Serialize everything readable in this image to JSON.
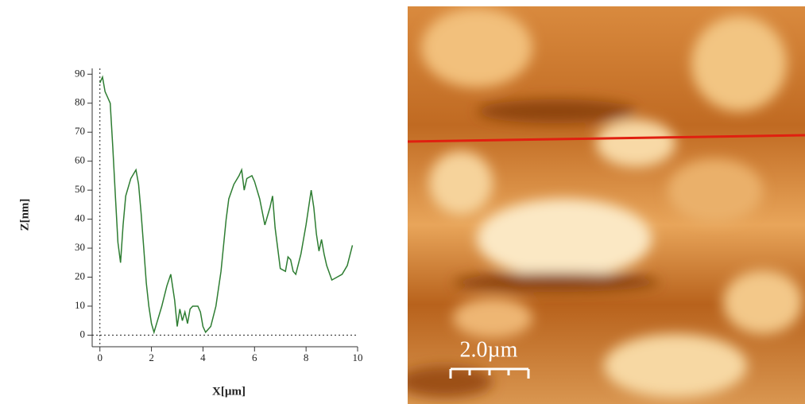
{
  "chart_data": {
    "type": "line",
    "xlabel": "X[µm]",
    "ylabel": "Z[nm]",
    "x": [
      0,
      0.1,
      0.2,
      0.3,
      0.4,
      0.5,
      0.6,
      0.7,
      0.8,
      0.9,
      1.0,
      1.2,
      1.4,
      1.5,
      1.6,
      1.7,
      1.8,
      1.9,
      2.0,
      2.1,
      2.2,
      2.4,
      2.6,
      2.75,
      2.9,
      3.0,
      3.1,
      3.2,
      3.3,
      3.4,
      3.5,
      3.6,
      3.8,
      3.9,
      4.0,
      4.1,
      4.3,
      4.5,
      4.7,
      4.9,
      5.0,
      5.2,
      5.4,
      5.5,
      5.6,
      5.7,
      5.9,
      6.0,
      6.2,
      6.4,
      6.6,
      6.7,
      6.8,
      7.0,
      7.2,
      7.3,
      7.4,
      7.5,
      7.6,
      7.8,
      8.0,
      8.2,
      8.3,
      8.4,
      8.5,
      8.6,
      8.7,
      8.8,
      9.0,
      9.2,
      9.4,
      9.6,
      9.8
    ],
    "series": [
      {
        "color": "#2e7d32",
        "values": [
          87,
          89,
          84,
          82,
          80,
          65,
          48,
          32,
          25,
          38,
          48,
          54,
          57,
          52,
          42,
          30,
          18,
          10,
          4,
          1,
          4,
          10,
          17,
          21,
          12,
          3,
          9,
          5,
          8,
          4,
          9,
          10,
          10,
          8,
          3,
          1,
          3,
          10,
          22,
          40,
          47,
          52,
          55,
          57,
          50,
          54,
          55,
          53,
          47,
          38,
          44,
          48,
          37,
          23,
          22,
          27,
          26,
          22,
          21,
          28,
          38,
          50,
          44,
          35,
          29,
          33,
          28,
          24,
          19,
          20,
          21,
          24,
          31
        ]
      }
    ],
    "xlim": [
      -0.3,
      10
    ],
    "ylim": [
      -4,
      92
    ],
    "xticks": [
      0,
      2,
      4,
      6,
      8,
      10
    ],
    "yticks": [
      0,
      10,
      20,
      30,
      40,
      50,
      60,
      70,
      80,
      90
    ]
  },
  "image": {
    "scale_bar": "2.0µm"
  }
}
